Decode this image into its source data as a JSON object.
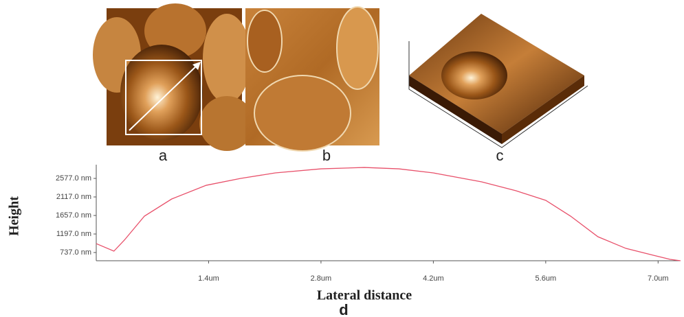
{
  "chart_data": {
    "type": "line",
    "annotations": [
      "a",
      "b",
      "c",
      "d"
    ],
    "xlabel": "Lateral distance",
    "ylabel": "Height",
    "x": [
      0,
      0.22,
      0.35,
      0.6,
      0.94,
      1.37,
      1.8,
      2.23,
      2.8,
      3.34,
      3.77,
      4.2,
      4.8,
      5.23,
      5.6,
      5.91,
      6.25,
      6.6,
      6.94,
      7.15,
      7.28
    ],
    "series": [
      {
        "color": "#e8506a",
        "values": [
          958,
          771,
          1044,
          1640,
          2066,
          2406,
          2577,
          2713,
          2815,
          2849,
          2815,
          2713,
          2492,
          2270,
          2032,
          1640,
          1129,
          839,
          669,
          567,
          533
        ]
      }
    ],
    "xlim": [
      0,
      7.28
    ],
    "ylim": [
      533,
      2918
    ],
    "xticks": [
      {
        "value": 1.4,
        "label": "1.4um"
      },
      {
        "value": 2.8,
        "label": "2.8um"
      },
      {
        "value": 4.2,
        "label": "4.2um"
      },
      {
        "value": 5.6,
        "label": "5.6um"
      },
      {
        "value": 7.0,
        "label": "7.0um"
      }
    ],
    "yticks": [
      {
        "value": 737,
        "label": "737.0 nm"
      },
      {
        "value": 1197,
        "label": "1197.0 nm"
      },
      {
        "value": 1657,
        "label": "1657.0 nm"
      },
      {
        "value": 2117,
        "label": "2117.0 nm"
      },
      {
        "value": 2577,
        "label": "2577.0 nm"
      }
    ]
  }
}
